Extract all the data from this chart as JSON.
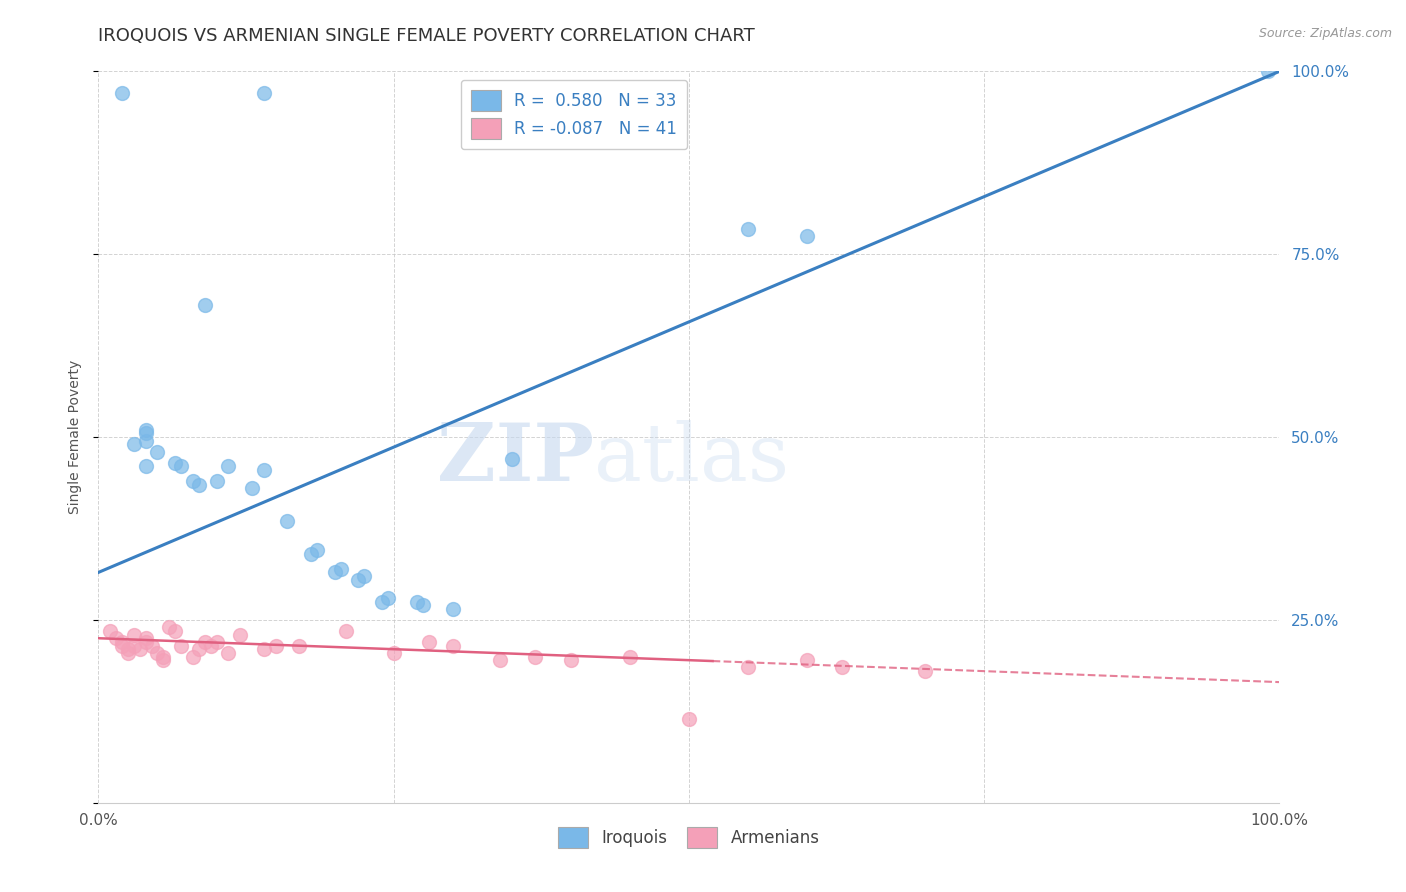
{
  "title": "IROQUOIS VS ARMENIAN SINGLE FEMALE POVERTY CORRELATION CHART",
  "source": "Source: ZipAtlas.com",
  "ylabel": "Single Female Poverty",
  "xlim": [
    0.0,
    1.0
  ],
  "ylim": [
    0.0,
    1.0
  ],
  "iroquois_color": "#7ab8e8",
  "armenian_color": "#f4a0b8",
  "iroquois_line_color": "#3a7fc1",
  "armenian_line_color": "#e06080",
  "iroquois_R": 0.58,
  "iroquois_N": 33,
  "armenian_R": -0.087,
  "armenian_N": 41,
  "watermark_zip": "ZIP",
  "watermark_atlas": "atlas",
  "iroquois_points": [
    [
      0.02,
      0.97
    ],
    [
      0.14,
      0.97
    ],
    [
      0.09,
      0.68
    ],
    [
      0.03,
      0.49
    ],
    [
      0.04,
      0.495
    ],
    [
      0.04,
      0.505
    ],
    [
      0.04,
      0.51
    ],
    [
      0.05,
      0.48
    ],
    [
      0.04,
      0.46
    ],
    [
      0.07,
      0.46
    ],
    [
      0.065,
      0.465
    ],
    [
      0.08,
      0.44
    ],
    [
      0.085,
      0.435
    ],
    [
      0.1,
      0.44
    ],
    [
      0.11,
      0.46
    ],
    [
      0.13,
      0.43
    ],
    [
      0.14,
      0.455
    ],
    [
      0.16,
      0.385
    ],
    [
      0.18,
      0.34
    ],
    [
      0.185,
      0.345
    ],
    [
      0.2,
      0.315
    ],
    [
      0.205,
      0.32
    ],
    [
      0.22,
      0.305
    ],
    [
      0.225,
      0.31
    ],
    [
      0.24,
      0.275
    ],
    [
      0.245,
      0.28
    ],
    [
      0.27,
      0.275
    ],
    [
      0.275,
      0.27
    ],
    [
      0.3,
      0.265
    ],
    [
      0.35,
      0.47
    ],
    [
      0.55,
      0.785
    ],
    [
      0.6,
      0.775
    ],
    [
      0.99,
      1.0
    ]
  ],
  "armenian_points": [
    [
      0.01,
      0.235
    ],
    [
      0.015,
      0.225
    ],
    [
      0.02,
      0.22
    ],
    [
      0.02,
      0.215
    ],
    [
      0.025,
      0.21
    ],
    [
      0.025,
      0.205
    ],
    [
      0.03,
      0.23
    ],
    [
      0.03,
      0.215
    ],
    [
      0.035,
      0.21
    ],
    [
      0.04,
      0.225
    ],
    [
      0.04,
      0.22
    ],
    [
      0.045,
      0.215
    ],
    [
      0.05,
      0.205
    ],
    [
      0.055,
      0.2
    ],
    [
      0.055,
      0.195
    ],
    [
      0.06,
      0.24
    ],
    [
      0.065,
      0.235
    ],
    [
      0.07,
      0.215
    ],
    [
      0.08,
      0.2
    ],
    [
      0.085,
      0.21
    ],
    [
      0.09,
      0.22
    ],
    [
      0.095,
      0.215
    ],
    [
      0.1,
      0.22
    ],
    [
      0.11,
      0.205
    ],
    [
      0.12,
      0.23
    ],
    [
      0.14,
      0.21
    ],
    [
      0.15,
      0.215
    ],
    [
      0.17,
      0.215
    ],
    [
      0.21,
      0.235
    ],
    [
      0.25,
      0.205
    ],
    [
      0.28,
      0.22
    ],
    [
      0.3,
      0.215
    ],
    [
      0.34,
      0.195
    ],
    [
      0.37,
      0.2
    ],
    [
      0.4,
      0.195
    ],
    [
      0.45,
      0.2
    ],
    [
      0.5,
      0.115
    ],
    [
      0.55,
      0.185
    ],
    [
      0.6,
      0.195
    ],
    [
      0.63,
      0.185
    ],
    [
      0.7,
      0.18
    ]
  ],
  "background_color": "#ffffff",
  "grid_color": "#c8c8c8",
  "title_fontsize": 13,
  "axis_label_fontsize": 10,
  "tick_fontsize": 11,
  "legend_fontsize": 12
}
